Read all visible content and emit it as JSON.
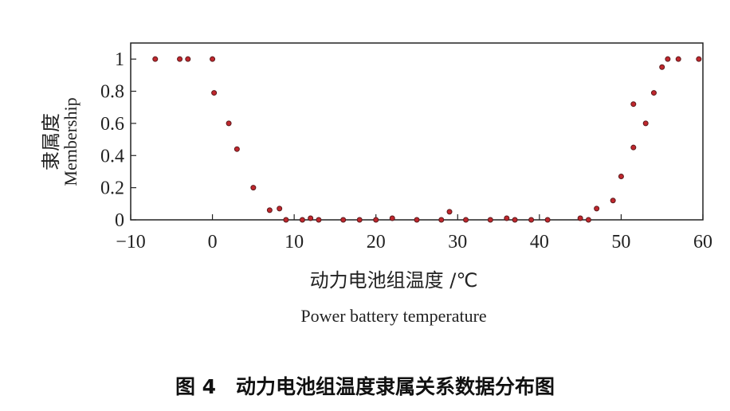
{
  "chart_data": {
    "type": "scatter",
    "xlabel_cn": "动力电池组温度 /℃",
    "xlabel_en": "Power battery temperature",
    "ylabel_cn": "隶属度",
    "ylabel_en": "Membership",
    "xlim": [
      -10,
      60
    ],
    "ylim": [
      0,
      1.1
    ],
    "x_ticks": [
      "−10",
      "0",
      "10",
      "20",
      "30",
      "40",
      "50",
      "60"
    ],
    "y_ticks": [
      "0",
      "0.2",
      "0.4",
      "0.6",
      "0.8",
      "1"
    ],
    "marker_color": "#c0272d",
    "marker_edge": "#5a1a1c",
    "grid": false,
    "points": [
      {
        "x": -7,
        "y": 1.0
      },
      {
        "x": -4,
        "y": 1.0
      },
      {
        "x": -3,
        "y": 1.0
      },
      {
        "x": 0,
        "y": 1.0
      },
      {
        "x": 0.2,
        "y": 0.79
      },
      {
        "x": 2,
        "y": 0.6
      },
      {
        "x": 3,
        "y": 0.44
      },
      {
        "x": 5,
        "y": 0.2
      },
      {
        "x": 7,
        "y": 0.06
      },
      {
        "x": 8.2,
        "y": 0.07
      },
      {
        "x": 9,
        "y": 0.0
      },
      {
        "x": 11,
        "y": 0.0
      },
      {
        "x": 12,
        "y": 0.01
      },
      {
        "x": 13,
        "y": 0.0
      },
      {
        "x": 16,
        "y": 0.0
      },
      {
        "x": 18,
        "y": 0.0
      },
      {
        "x": 20,
        "y": 0.0
      },
      {
        "x": 22,
        "y": 0.01
      },
      {
        "x": 25,
        "y": 0.0
      },
      {
        "x": 28,
        "y": 0.0
      },
      {
        "x": 29,
        "y": 0.05
      },
      {
        "x": 31,
        "y": 0.0
      },
      {
        "x": 34,
        "y": 0.0
      },
      {
        "x": 36,
        "y": 0.01
      },
      {
        "x": 37,
        "y": 0.0
      },
      {
        "x": 39,
        "y": 0.0
      },
      {
        "x": 41,
        "y": 0.0
      },
      {
        "x": 45,
        "y": 0.01
      },
      {
        "x": 46,
        "y": 0.0
      },
      {
        "x": 47,
        "y": 0.07
      },
      {
        "x": 49,
        "y": 0.12
      },
      {
        "x": 50,
        "y": 0.27
      },
      {
        "x": 51.5,
        "y": 0.45
      },
      {
        "x": 51.5,
        "y": 0.72
      },
      {
        "x": 53,
        "y": 0.6
      },
      {
        "x": 54,
        "y": 0.79
      },
      {
        "x": 55,
        "y": 0.95
      },
      {
        "x": 55.7,
        "y": 1.0
      },
      {
        "x": 57,
        "y": 1.0
      },
      {
        "x": 59.5,
        "y": 1.0
      }
    ]
  },
  "caption": "图 4　动力电池组温度隶属关系数据分布图"
}
